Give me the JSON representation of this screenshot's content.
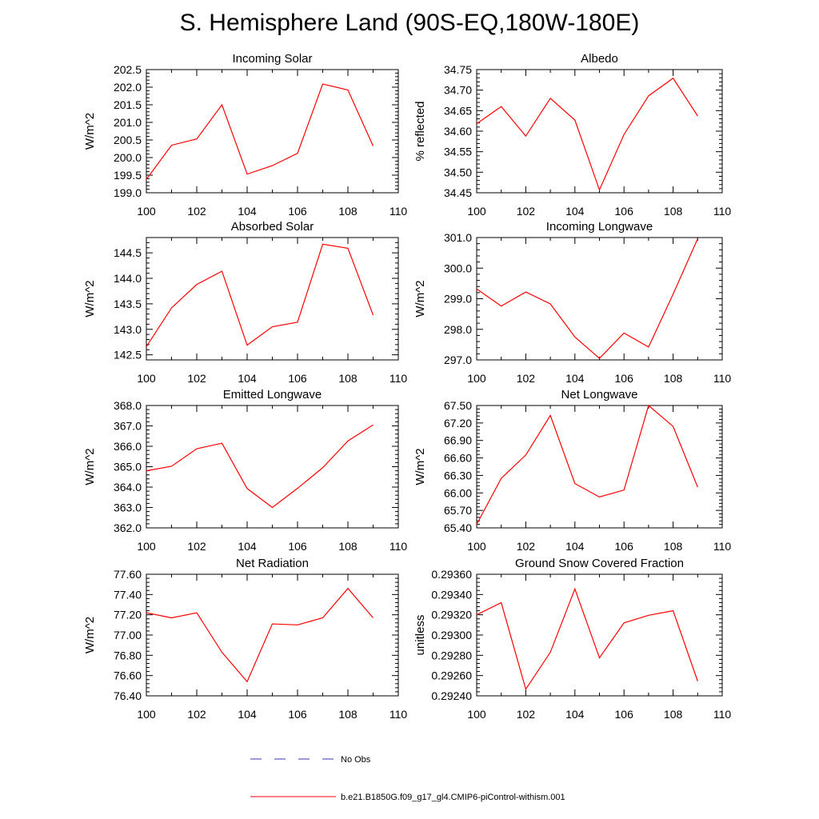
{
  "page_title": "S. Hemisphere Land (90S-EQ,180W-180E)",
  "colors": {
    "model_line": "#ff0000",
    "obs_line": "#3a3ab0",
    "axis": "#000000",
    "background": "#ffffff"
  },
  "chart_data": [
    {
      "type": "line",
      "title": "Incoming Solar",
      "ylabel": "W/m^2",
      "xlabel": "",
      "xlim": [
        100,
        110
      ],
      "ylim": [
        199.0,
        202.5
      ],
      "xticks": [
        "100",
        "102",
        "104",
        "106",
        "108",
        "110"
      ],
      "yticks": [
        "199.0",
        "199.5",
        "200.0",
        "200.5",
        "201.0",
        "201.5",
        "202.0",
        "202.5"
      ],
      "x": [
        100,
        101,
        102,
        103,
        104,
        105,
        106,
        107,
        108,
        109
      ],
      "series": [
        {
          "name": "b.e21.B1850G.f09_g17_gl4.CMIP6-piControl-withism.001",
          "values": [
            199.38,
            200.35,
            200.53,
            201.5,
            199.53,
            199.77,
            200.12,
            202.09,
            201.92,
            200.33
          ]
        }
      ]
    },
    {
      "type": "line",
      "title": "Albedo",
      "ylabel": "% reflected",
      "xlabel": "",
      "xlim": [
        100,
        110
      ],
      "ylim": [
        34.45,
        34.75
      ],
      "xticks": [
        "100",
        "102",
        "104",
        "106",
        "108",
        "110"
      ],
      "yticks": [
        "34.45",
        "34.50",
        "34.55",
        "34.60",
        "34.65",
        "34.70",
        "34.75"
      ],
      "x": [
        100,
        101,
        102,
        103,
        104,
        105,
        106,
        107,
        108,
        109
      ],
      "series": [
        {
          "name": "b.e21.B1850G.f09_g17_gl4.CMIP6-piControl-withism.001",
          "values": [
            34.618,
            34.66,
            34.588,
            34.68,
            34.627,
            34.457,
            34.592,
            34.686,
            34.729,
            34.637
          ]
        }
      ]
    },
    {
      "type": "line",
      "title": "Absorbed Solar",
      "ylabel": "W/m^2",
      "xlabel": "",
      "xlim": [
        100,
        110
      ],
      "ylim": [
        142.4,
        144.8
      ],
      "xticks": [
        "100",
        "102",
        "104",
        "106",
        "108",
        "110"
      ],
      "yticks": [
        "142.5",
        "143.0",
        "143.5",
        "144.0",
        "144.5"
      ],
      "x": [
        100,
        101,
        102,
        103,
        104,
        105,
        106,
        107,
        108,
        109
      ],
      "series": [
        {
          "name": "b.e21.B1850G.f09_g17_gl4.CMIP6-piControl-withism.001",
          "values": [
            142.66,
            143.42,
            143.88,
            144.14,
            142.69,
            143.05,
            143.14,
            144.67,
            144.59,
            143.28
          ]
        }
      ]
    },
    {
      "type": "line",
      "title": "Incoming Longwave",
      "ylabel": "W/m^2",
      "xlabel": "",
      "xlim": [
        100,
        110
      ],
      "ylim": [
        297.0,
        301.0
      ],
      "xticks": [
        "100",
        "102",
        "104",
        "106",
        "108",
        "110"
      ],
      "yticks": [
        "297.0",
        "298.0",
        "299.0",
        "300.0",
        "301.0"
      ],
      "x": [
        100,
        101,
        102,
        103,
        104,
        105,
        106,
        107,
        108,
        109
      ],
      "series": [
        {
          "name": "b.e21.B1850G.f09_g17_gl4.CMIP6-piControl-withism.001",
          "values": [
            299.32,
            298.76,
            299.22,
            298.83,
            297.75,
            297.05,
            297.88,
            297.42,
            299.15,
            300.96
          ]
        }
      ]
    },
    {
      "type": "line",
      "title": "Emitted Longwave",
      "ylabel": "W/m^2",
      "xlabel": "",
      "xlim": [
        100,
        110
      ],
      "ylim": [
        362.0,
        368.0
      ],
      "xticks": [
        "100",
        "102",
        "104",
        "106",
        "108",
        "110"
      ],
      "yticks": [
        "362.0",
        "363.0",
        "364.0",
        "365.0",
        "366.0",
        "367.0",
        "368.0"
      ],
      "x": [
        100,
        101,
        102,
        103,
        104,
        105,
        106,
        107,
        108,
        109
      ],
      "series": [
        {
          "name": "b.e21.B1850G.f09_g17_gl4.CMIP6-piControl-withism.001",
          "values": [
            364.8,
            365.02,
            365.88,
            366.15,
            363.93,
            363.0,
            363.94,
            364.95,
            366.26,
            367.05
          ]
        }
      ]
    },
    {
      "type": "line",
      "title": "Net Longwave",
      "ylabel": "W/m^2",
      "xlabel": "",
      "xlim": [
        100,
        110
      ],
      "ylim": [
        65.4,
        67.5
      ],
      "xticks": [
        "100",
        "102",
        "104",
        "106",
        "108",
        "110"
      ],
      "yticks": [
        "65.40",
        "65.70",
        "66.00",
        "66.30",
        "66.60",
        "66.90",
        "67.20",
        "67.50"
      ],
      "x": [
        100,
        101,
        102,
        103,
        104,
        105,
        106,
        107,
        108,
        109
      ],
      "series": [
        {
          "name": "b.e21.B1850G.f09_g17_gl4.CMIP6-piControl-withism.001",
          "values": [
            65.46,
            66.25,
            66.65,
            67.33,
            66.16,
            65.93,
            66.05,
            67.5,
            67.14,
            66.1
          ]
        }
      ]
    },
    {
      "type": "line",
      "title": "Net Radiation",
      "ylabel": "W/m^2",
      "xlabel": "",
      "xlim": [
        100,
        110
      ],
      "ylim": [
        76.4,
        77.6
      ],
      "xticks": [
        "100",
        "102",
        "104",
        "106",
        "108",
        "110"
      ],
      "yticks": [
        "76.40",
        "76.60",
        "76.80",
        "77.00",
        "77.20",
        "77.40",
        "77.60"
      ],
      "x": [
        100,
        101,
        102,
        103,
        104,
        105,
        106,
        107,
        108,
        109
      ],
      "series": [
        {
          "name": "b.e21.B1850G.f09_g17_gl4.CMIP6-piControl-withism.001",
          "values": [
            77.22,
            77.17,
            77.22,
            76.83,
            76.54,
            77.11,
            77.1,
            77.17,
            77.46,
            77.17
          ]
        }
      ]
    },
    {
      "type": "line",
      "title": "Ground Snow Covered Fraction",
      "ylabel": "unitless",
      "xlabel": "",
      "xlim": [
        100,
        110
      ],
      "ylim": [
        0.2924,
        0.2936
      ],
      "xticks": [
        "100",
        "102",
        "104",
        "106",
        "108",
        "110"
      ],
      "yticks": [
        "0.29240",
        "0.29260",
        "0.29280",
        "0.29300",
        "0.29320",
        "0.29340",
        "0.29360"
      ],
      "x": [
        100,
        101,
        102,
        103,
        104,
        105,
        106,
        107,
        108,
        109
      ],
      "series": [
        {
          "name": "b.e21.B1850G.f09_g17_gl4.CMIP6-piControl-withism.001",
          "values": [
            0.2932,
            0.29332,
            0.292465,
            0.29283,
            0.293455,
            0.292775,
            0.29312,
            0.293195,
            0.29324,
            0.292545
          ]
        }
      ]
    }
  ],
  "legend": {
    "obs_label": "No Obs",
    "model_label": "b.e21.B1850G.f09_g17_gl4.CMIP6-piControl-withism.001"
  }
}
